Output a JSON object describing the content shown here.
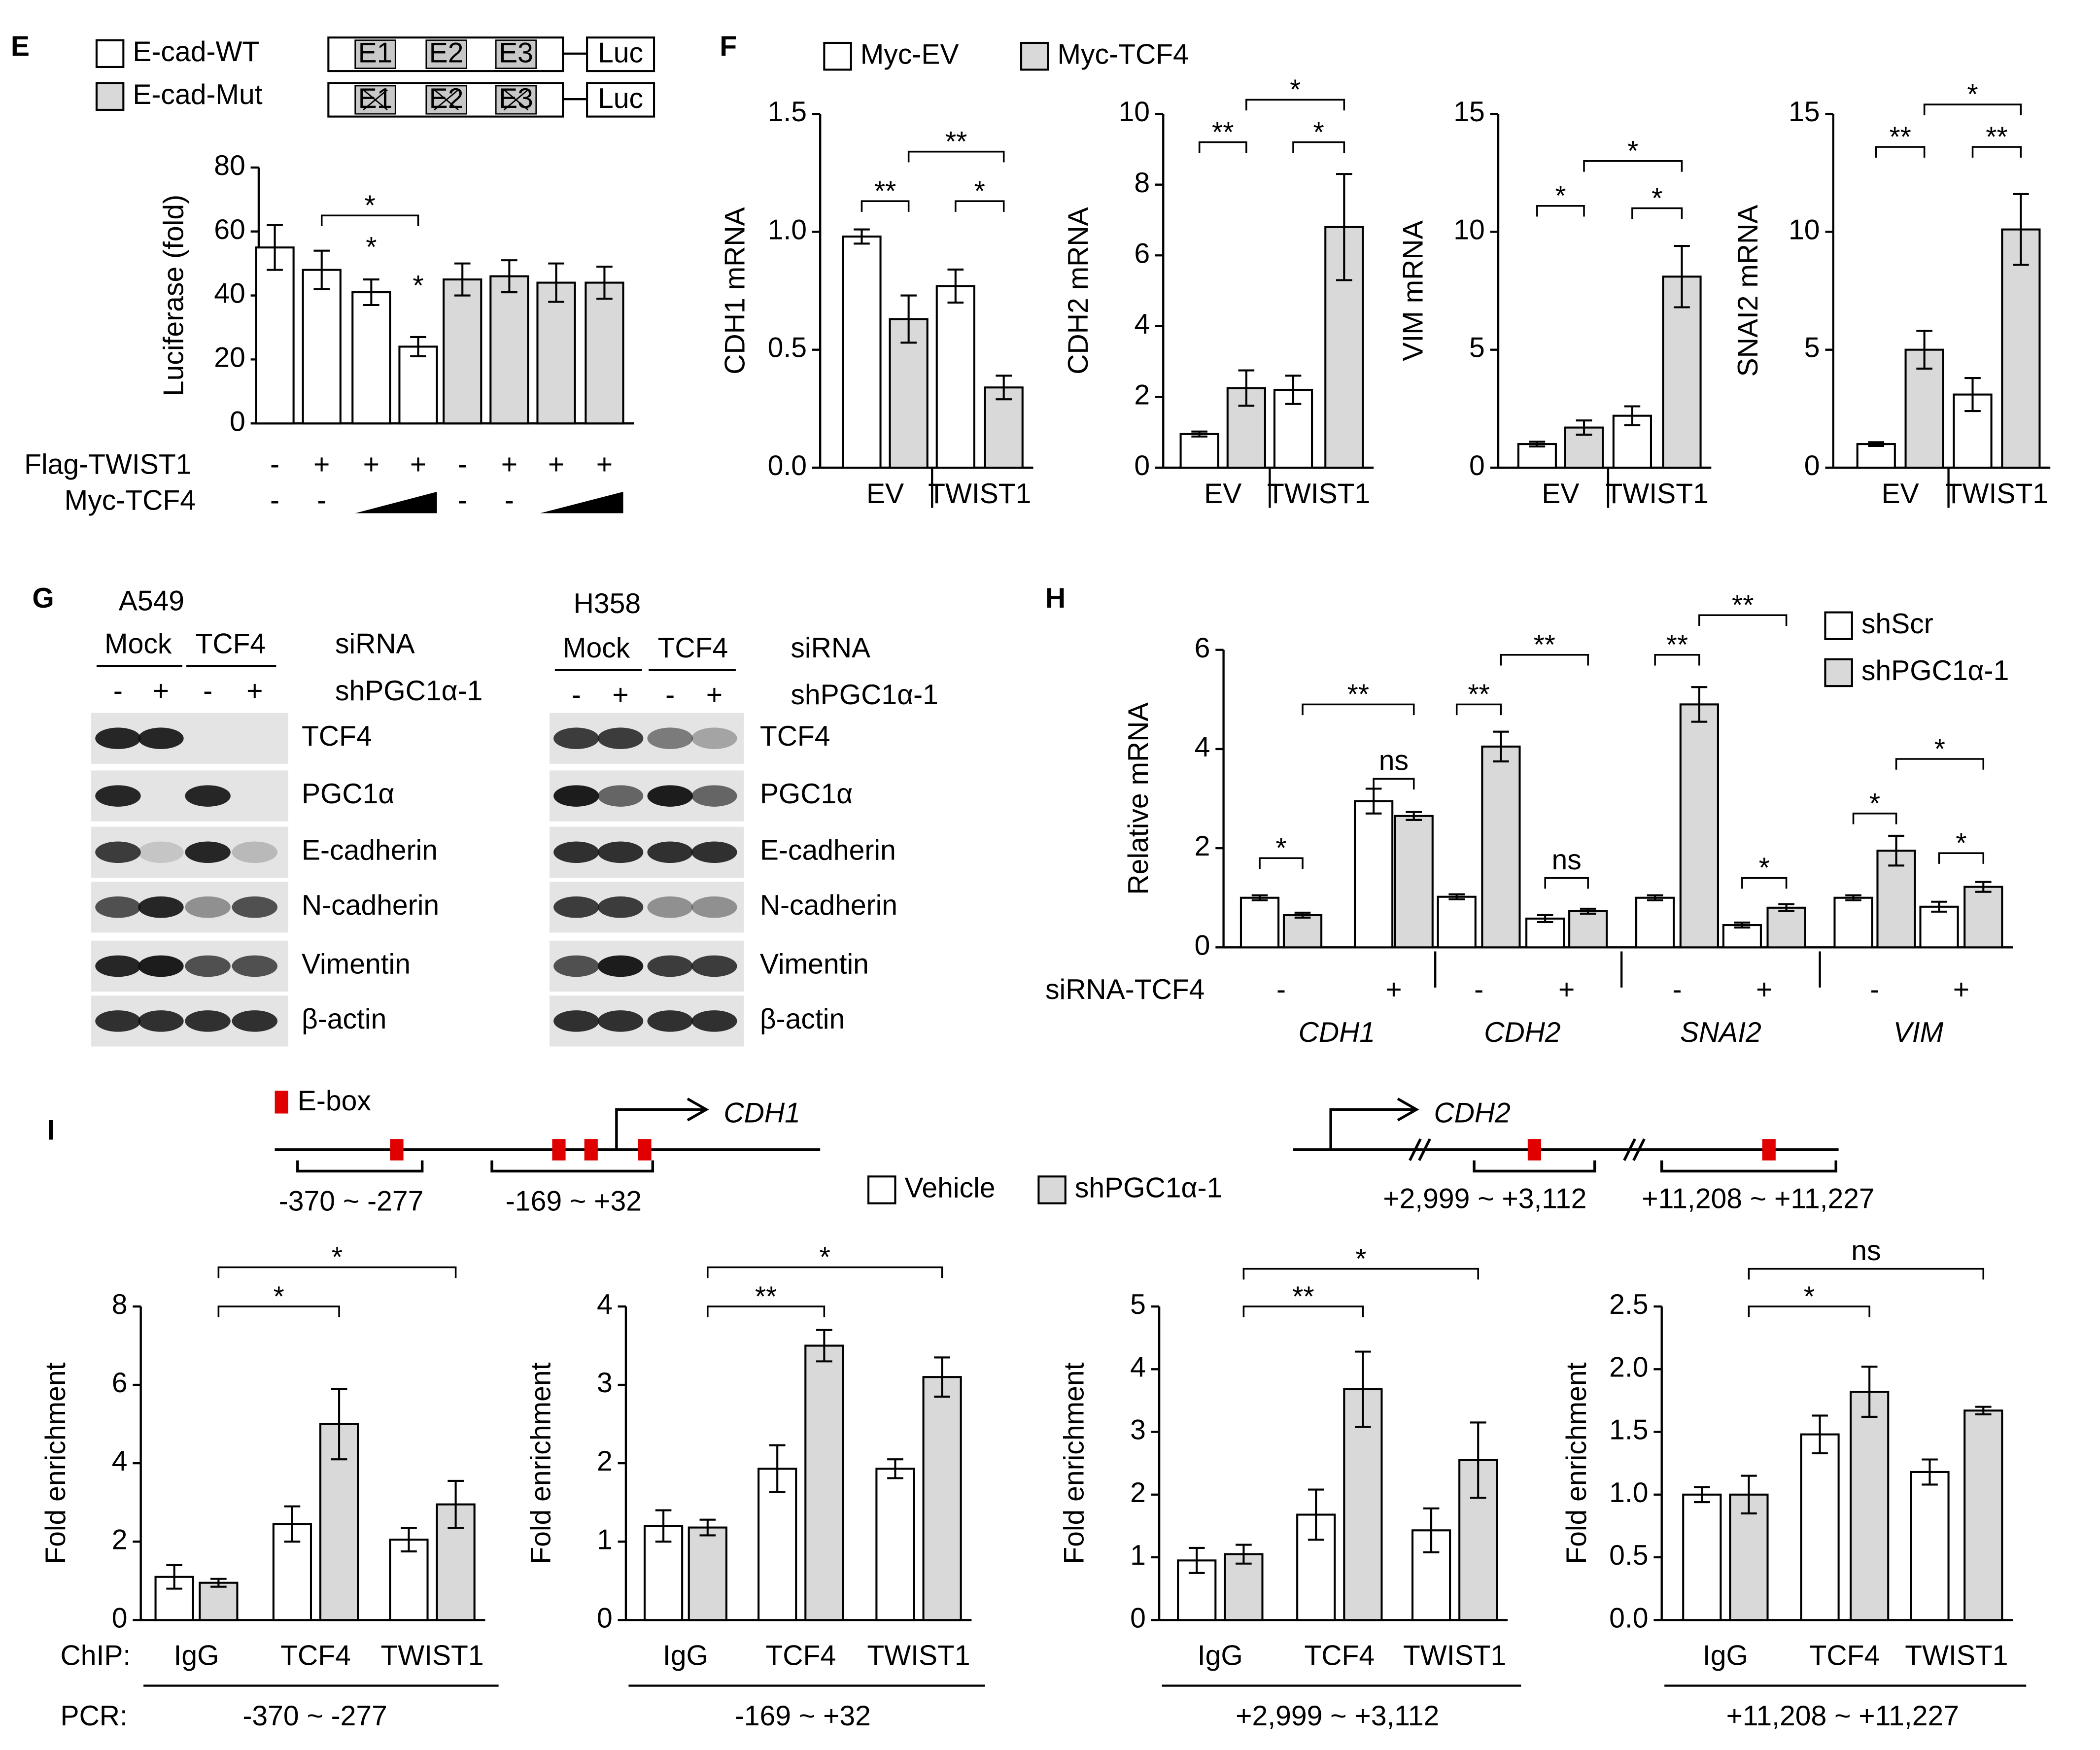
{
  "panels": [
    "E",
    "F",
    "G",
    "H",
    "I"
  ],
  "chart_data": [
    {
      "type": "bar",
      "ylabel": "Luciferase (fold)",
      "ylim": [
        0,
        80
      ],
      "yticks": [
        0,
        20,
        40,
        60,
        80
      ],
      "series": [
        {
          "name": "E-cad-WT",
          "color": "#ffffff",
          "values": [
            55,
            48,
            41,
            24
          ],
          "errors": [
            7,
            6,
            4,
            3
          ]
        },
        {
          "name": "E-cad-Mut",
          "color": "#d9d9d9",
          "values": [
            45,
            46,
            44,
            44
          ],
          "errors": [
            5,
            5,
            6,
            5
          ]
        }
      ],
      "rows": [
        {
          "label": "Flag-TWIST1",
          "signs": [
            "-",
            "+",
            "+",
            "+",
            "-",
            "+",
            "+",
            "+"
          ]
        },
        {
          "label": "Myc-TCF4",
          "signs": [
            "-",
            "-",
            null,
            null,
            "-",
            "-",
            null,
            null
          ]
        }
      ],
      "construct": [
        "E1",
        "E2",
        "E3",
        "Luc"
      ],
      "annotations": [
        "*",
        "*",
        "*"
      ]
    },
    {
      "type": "bar",
      "ylabel": "CDH1 mRNA",
      "ylim": [
        0,
        1.5
      ],
      "yticks": [
        {
          "value": 0,
          "label": "0.0"
        },
        {
          "value": 0.5,
          "label": "0.5"
        },
        {
          "value": 1,
          "label": "1.0"
        },
        {
          "value": 1.5,
          "label": "1.5"
        }
      ],
      "categories": [
        "EV",
        "TWIST1"
      ],
      "series": [
        {
          "name": "Myc-EV",
          "color": "#ffffff",
          "values": [
            0.98,
            0.77
          ],
          "errors": [
            0.03,
            0.07
          ]
        },
        {
          "name": "Myc-TCF4",
          "color": "#d9d9d9",
          "values": [
            0.63,
            0.34
          ],
          "errors": [
            0.1,
            0.05
          ]
        }
      ],
      "annotations": [
        "**",
        "*",
        "**"
      ]
    },
    {
      "type": "bar",
      "ylabel": "CDH2 mRNA",
      "ylim": [
        0,
        10
      ],
      "yticks": [
        0,
        2,
        4,
        6,
        8,
        10
      ],
      "categories": [
        "EV",
        "TWIST1"
      ],
      "series": [
        {
          "color": "#ffffff",
          "values": [
            0.95,
            2.2
          ],
          "errors": [
            0.07,
            0.4
          ]
        },
        {
          "color": "#d9d9d9",
          "values": [
            2.25,
            6.8
          ],
          "errors": [
            0.5,
            1.5
          ]
        }
      ],
      "annotations": [
        "**",
        "*",
        "*"
      ]
    },
    {
      "type": "bar",
      "ylabel": "VIM mRNA",
      "ylim": [
        0,
        15
      ],
      "yticks": [
        0,
        5,
        10,
        15
      ],
      "categories": [
        "EV",
        "TWIST1"
      ],
      "series": [
        {
          "color": "#ffffff",
          "values": [
            1.0,
            2.2
          ],
          "errors": [
            0.1,
            0.4
          ]
        },
        {
          "color": "#d9d9d9",
          "values": [
            1.7,
            8.1
          ],
          "errors": [
            0.3,
            1.3
          ]
        }
      ],
      "annotations": [
        "*",
        "*",
        "*"
      ]
    },
    {
      "type": "bar",
      "ylabel": "SNAI2 mRNA",
      "ylim": [
        0,
        15
      ],
      "yticks": [
        0,
        5,
        10,
        15
      ],
      "categories": [
        "EV",
        "TWIST1"
      ],
      "series": [
        {
          "color": "#ffffff",
          "values": [
            1.0,
            3.1
          ],
          "errors": [
            0.08,
            0.7
          ]
        },
        {
          "color": "#d9d9d9",
          "values": [
            5.0,
            10.1
          ],
          "errors": [
            0.8,
            1.5
          ]
        }
      ],
      "annotations": [
        "**",
        "**",
        "*"
      ]
    },
    {
      "type": "bar",
      "ylabel": "Relative mRNA",
      "ylim": [
        0,
        6
      ],
      "yticks": [
        0,
        2,
        4,
        6
      ],
      "row_label": "siRNA-TCF4",
      "categories": [
        "-",
        "+",
        "-",
        "+",
        "-",
        "+",
        "-",
        "+"
      ],
      "genes": [
        "CDH1",
        "CDH2",
        "SNAI2",
        "VIM"
      ],
      "series": [
        {
          "name": "shScr",
          "color": "#ffffff",
          "values": [
            1.0,
            2.95,
            1.02,
            0.58,
            1.0,
            0.45,
            1.0,
            0.82
          ],
          "errors": [
            0.05,
            0.25,
            0.05,
            0.07,
            0.05,
            0.05,
            0.05,
            0.1
          ]
        },
        {
          "name": "shPGC1α-1",
          "color": "#d9d9d9",
          "values": [
            0.65,
            2.65,
            4.05,
            0.73,
            4.9,
            0.8,
            1.95,
            1.22
          ],
          "errors": [
            0.05,
            0.08,
            0.3,
            0.05,
            0.35,
            0.07,
            0.3,
            0.1
          ]
        }
      ],
      "annotations": [
        "*",
        "ns",
        "**",
        "**",
        "ns",
        "**",
        "**",
        "*",
        "**",
        "*",
        "*",
        "*"
      ]
    },
    {
      "type": "bar",
      "ylabel": "Fold enrichment",
      "ylim": [
        0,
        8
      ],
      "yticks": [
        0,
        2,
        4,
        6,
        8
      ],
      "categories": [
        "IgG",
        "TCF4",
        "TWIST1"
      ],
      "xlabel": "-370 ~ -277",
      "chip_label": "ChIP:",
      "pcr_label": "PCR:",
      "series": [
        {
          "name": "Vehicle",
          "color": "#ffffff",
          "values": [
            1.1,
            2.45,
            2.05
          ],
          "errors": [
            0.3,
            0.45,
            0.3
          ]
        },
        {
          "name": "shPGC1α-1",
          "color": "#d9d9d9",
          "values": [
            0.95,
            5.0,
            2.95
          ],
          "errors": [
            0.1,
            0.9,
            0.6
          ]
        }
      ],
      "annotations": [
        "*",
        "*"
      ]
    },
    {
      "type": "bar",
      "ylabel": "Fold enrichment",
      "ylim": [
        0,
        4
      ],
      "yticks": [
        0,
        1,
        2,
        3,
        4
      ],
      "categories": [
        "IgG",
        "TCF4",
        "TWIST1"
      ],
      "xlabel": "-169 ~ +32",
      "series": [
        {
          "color": "#ffffff",
          "values": [
            1.2,
            1.93,
            1.93
          ],
          "errors": [
            0.2,
            0.3,
            0.12
          ]
        },
        {
          "color": "#d9d9d9",
          "values": [
            1.18,
            3.5,
            3.1
          ],
          "errors": [
            0.1,
            0.2,
            0.25
          ]
        }
      ],
      "annotations": [
        "**",
        "*"
      ]
    },
    {
      "type": "bar",
      "ylabel": "Fold enrichment",
      "ylim": [
        0,
        5
      ],
      "yticks": [
        0,
        1,
        2,
        3,
        4,
        5
      ],
      "categories": [
        "IgG",
        "TCF4",
        "TWIST1"
      ],
      "xlabel": "+2,999 ~ +3,112",
      "series": [
        {
          "color": "#ffffff",
          "values": [
            0.95,
            1.68,
            1.43
          ],
          "errors": [
            0.2,
            0.4,
            0.35
          ]
        },
        {
          "color": "#d9d9d9",
          "values": [
            1.05,
            3.68,
            2.55
          ],
          "errors": [
            0.15,
            0.6,
            0.6
          ]
        }
      ],
      "annotations": [
        "**",
        "*"
      ]
    },
    {
      "type": "bar",
      "ylabel": "Fold enrichment",
      "ylim": [
        0,
        2.5
      ],
      "yticks": [
        {
          "value": 0,
          "label": "0.0"
        },
        {
          "value": 0.5,
          "label": "0.5"
        },
        {
          "value": 1,
          "label": "1.0"
        },
        {
          "value": 1.5,
          "label": "1.5"
        },
        {
          "value": 2,
          "label": "2.0"
        },
        {
          "value": 2.5,
          "label": "2.5"
        }
      ],
      "categories": [
        "IgG",
        "TCF4",
        "TWIST1"
      ],
      "xlabel": "+11,208 ~ +11,227",
      "series": [
        {
          "color": "#ffffff",
          "values": [
            1.0,
            1.48,
            1.18
          ],
          "errors": [
            0.06,
            0.15,
            0.1
          ]
        },
        {
          "color": "#d9d9d9",
          "values": [
            1.0,
            1.82,
            1.67
          ],
          "errors": [
            0.15,
            0.2,
            0.03
          ]
        }
      ],
      "annotations": [
        "*",
        "ns"
      ]
    }
  ],
  "blots": [
    {
      "cell": "A549",
      "knockdown": [
        "Mock",
        "TCF4"
      ],
      "treatment": "siRNA",
      "signs": [
        "-",
        "+",
        "-",
        "+"
      ],
      "shrna": "shPGC1α-1",
      "proteins": [
        "TCF4",
        "PGC1α",
        "E-cadherin",
        "N-cadherin",
        "Vimentin",
        "β-actin"
      ]
    },
    {
      "cell": "H358",
      "knockdown": [
        "Mock",
        "TCF4"
      ],
      "treatment": "siRNA",
      "signs": [
        "-",
        "+",
        "-",
        "+"
      ],
      "shrna": "shPGC1α-1",
      "proteins": [
        "TCF4",
        "PGC1α",
        "E-cadherin",
        "N-cadherin",
        "Vimentin",
        "β-actin"
      ]
    }
  ],
  "diagrams": {
    "ebox": "E-box",
    "genes": [
      "CDH1",
      "CDH2"
    ],
    "regions": [
      "-370 ~ -277",
      "-169 ~ +32",
      "+2,999 ~ +3,112",
      "+11,208 ~ +11,227"
    ]
  }
}
